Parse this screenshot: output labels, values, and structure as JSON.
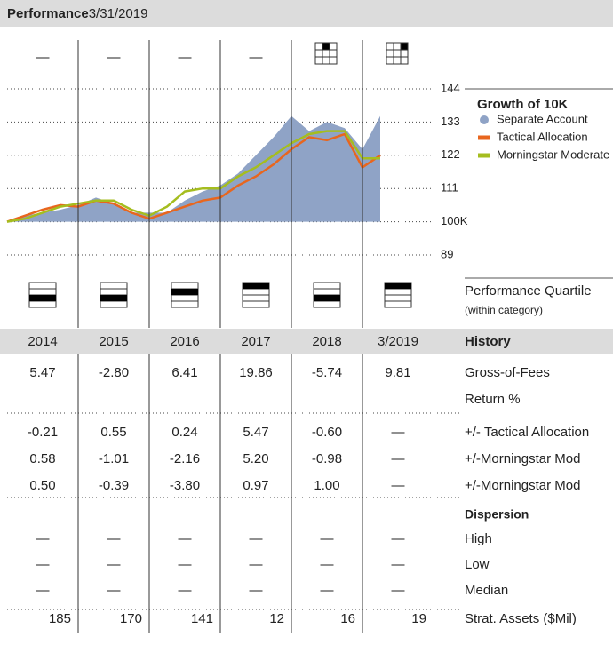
{
  "header": {
    "title": "Performance",
    "date": "3/31/2019"
  },
  "top_row": [
    "—",
    "—",
    "—",
    "—"
  ],
  "chart_data": {
    "type": "line",
    "title": "Growth of 10K",
    "series": [
      {
        "name": "Separate Account",
        "color": "#8fa3c6",
        "kind": "area",
        "values": [
          100,
          102,
          103,
          104,
          105.5,
          108,
          106,
          103,
          103,
          103,
          107,
          110,
          112,
          116,
          122,
          128,
          135,
          130,
          133,
          131,
          124,
          135
        ]
      },
      {
        "name": "Tactical Allocation",
        "color": "#e8661e",
        "kind": "line",
        "values": [
          100,
          102,
          104,
          105.5,
          105,
          107,
          106,
          103,
          101,
          103,
          105,
          107,
          108,
          112,
          115,
          119,
          124,
          128,
          127,
          129,
          118,
          122
        ]
      },
      {
        "name": "Morningstar Moderate",
        "color": "#a5bd1f",
        "kind": "line",
        "values": [
          100,
          101,
          103,
          105,
          106,
          107,
          107,
          104,
          102,
          105,
          110,
          111,
          111,
          115,
          118,
          122,
          126,
          129,
          130,
          130,
          121,
          121
        ]
      }
    ],
    "ylim": [
      89,
      144
    ],
    "yticks": [
      89,
      {
        "value": 100,
        "label": "100K"
      },
      111,
      122,
      133,
      144
    ],
    "grid": true
  },
  "quartile": {
    "label": "Performance Quartile",
    "note": "(within category)",
    "values": [
      3,
      3,
      2,
      1,
      3,
      1
    ]
  },
  "history": {
    "title": "History",
    "years": [
      "2014",
      "2015",
      "2016",
      "2017",
      "2018",
      "3/2019"
    ],
    "gross": {
      "label": [
        "Gross-of-Fees",
        "Return %"
      ],
      "values": [
        "5.47",
        "-2.80",
        "6.41",
        "19.86",
        "-5.74",
        "9.81"
      ]
    },
    "relative": [
      {
        "label": "+/- Tactical Allocation",
        "values": [
          "-0.21",
          "0.55",
          "0.24",
          "5.47",
          "-0.60",
          "—"
        ]
      },
      {
        "label": "+/-Morningstar Mod",
        "values": [
          "0.58",
          "-1.01",
          "-2.16",
          "5.20",
          "-0.98",
          "—"
        ]
      },
      {
        "label": "+/-Morningstar Mod",
        "values": [
          "0.50",
          "-0.39",
          "-3.80",
          "0.97",
          "1.00",
          "—"
        ]
      }
    ],
    "dispersion": {
      "title": "Dispersion",
      "rows": [
        {
          "label": "High",
          "values": [
            "—",
            "—",
            "—",
            "—",
            "—",
            "—"
          ]
        },
        {
          "label": "Low",
          "values": [
            "—",
            "—",
            "—",
            "—",
            "—",
            "—"
          ]
        },
        {
          "label": "Median",
          "values": [
            "—",
            "—",
            "—",
            "—",
            "—",
            "—"
          ]
        }
      ]
    },
    "assets": {
      "label": "Strat. Assets ($Mil)",
      "values": [
        "185",
        "170",
        "141",
        "12",
        "16",
        "19"
      ]
    }
  }
}
